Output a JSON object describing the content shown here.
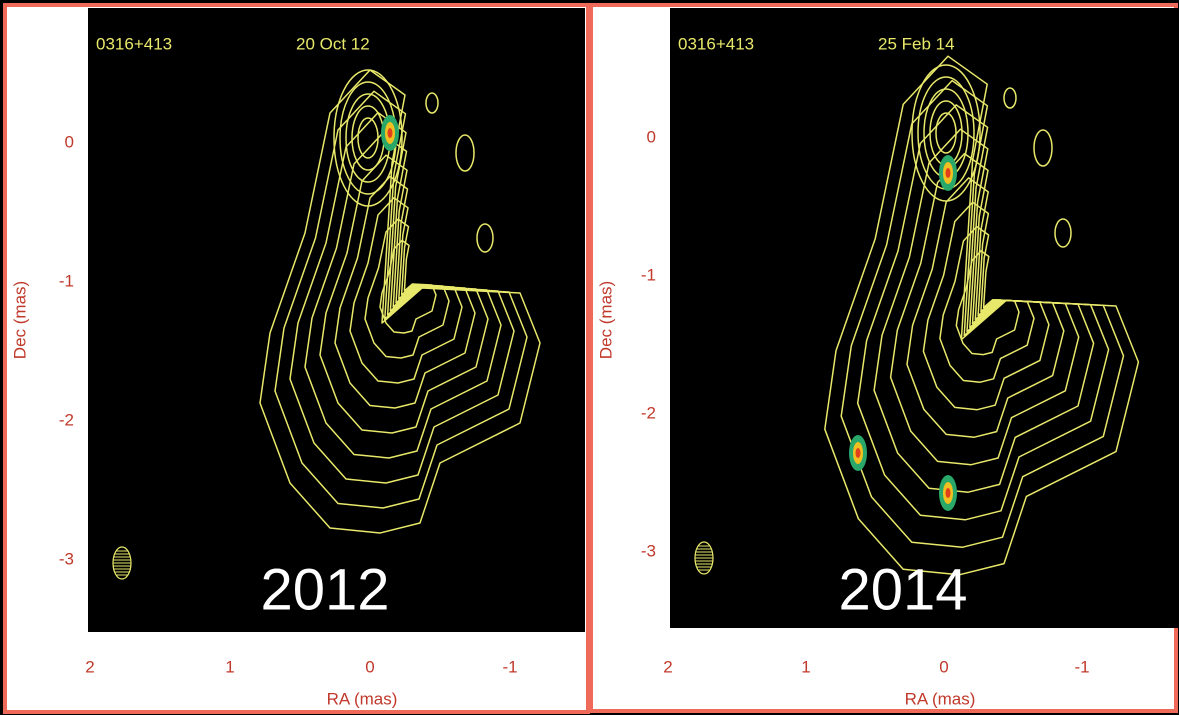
{
  "panels": [
    {
      "source": "0316+413",
      "date": "20 Oct 12",
      "year": "2012",
      "xlabel": "RA (mas)",
      "ylabel": "Dec (mas)",
      "xticks": [
        2,
        1,
        0,
        -1
      ],
      "yticks": [
        0,
        -1,
        -2,
        -3
      ]
    },
    {
      "source": "0316+413",
      "date": "25 Feb 14",
      "year": "2014",
      "xlabel": "RA (mas)",
      "ylabel": "Dec (mas)",
      "xticks": [
        2,
        1,
        0,
        -1
      ],
      "yticks": [
        0,
        -1,
        -2,
        -3
      ]
    }
  ]
}
